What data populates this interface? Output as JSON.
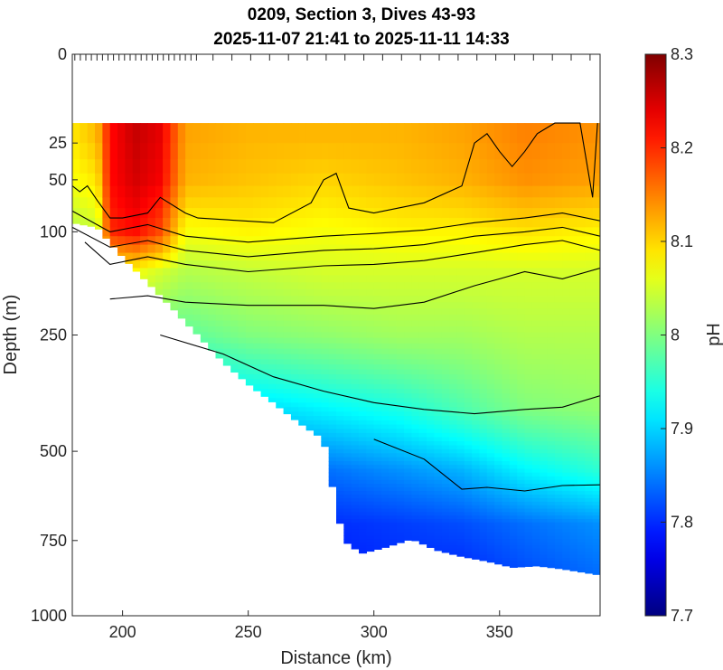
{
  "chart_data": {
    "type": "heatmap",
    "title": [
      "0209, Section 3, Dives 43-93",
      "2025-11-07 21:41 to 2025-11-11 14:33"
    ],
    "xlabel": "Distance (km)",
    "ylabel": "Depth (m)",
    "xlim": [
      180,
      390
    ],
    "ylim": [
      0,
      1000
    ],
    "y_scale": "nonlinear (square-root-like)",
    "x_ticks": [
      200,
      250,
      300,
      350
    ],
    "y_ticks": [
      0,
      25,
      50,
      100,
      250,
      500,
      750,
      1000
    ],
    "colorbar": {
      "label": "pH",
      "range": [
        7.7,
        8.3
      ],
      "ticks": [
        7.7,
        7.8,
        7.9,
        8,
        8.1,
        8.2,
        8.3
      ],
      "tick_labels": [
        "7.7",
        "7.8",
        "7.9",
        "8",
        "8.1",
        "8.2",
        "8.3"
      ],
      "colormap": "jet"
    },
    "grid": false,
    "dive_markers_axis": "top",
    "data_top_depth": 15,
    "bottom_depth_profile": {
      "distance": [
        180,
        190,
        200,
        210,
        220,
        230,
        240,
        250,
        260,
        270,
        280,
        288,
        295,
        305,
        315,
        325,
        335,
        345,
        355,
        365,
        375,
        390
      ],
      "depth": [
        90,
        95,
        130,
        165,
        205,
        250,
        300,
        345,
        385,
        430,
        470,
        750,
        790,
        770,
        745,
        780,
        800,
        815,
        835,
        830,
        840,
        860
      ]
    },
    "value_profiles": {
      "depths": [
        15,
        50,
        100,
        150,
        250,
        400,
        550,
        700,
        850
      ],
      "columns": [
        {
          "distance": 180,
          "ph": [
            8.09,
            8.07,
            8.03,
            8.0,
            7.96,
            7.88,
            7.83,
            7.8,
            7.79
          ]
        },
        {
          "distance": 190,
          "ph": [
            8.12,
            8.09,
            8.04,
            8.01,
            7.96,
            7.88,
            7.83,
            7.8,
            7.79
          ]
        },
        {
          "distance": 195,
          "ph": [
            8.22,
            8.22,
            8.2,
            8.05,
            7.97,
            7.88,
            7.83,
            7.8,
            7.79
          ]
        },
        {
          "distance": 205,
          "ph": [
            8.26,
            8.25,
            8.22,
            8.07,
            7.98,
            7.88,
            7.83,
            7.8,
            7.79
          ]
        },
        {
          "distance": 215,
          "ph": [
            8.24,
            8.23,
            8.18,
            8.05,
            7.98,
            7.88,
            7.83,
            7.8,
            7.79
          ]
        },
        {
          "distance": 225,
          "ph": [
            8.13,
            8.12,
            8.07,
            8.03,
            7.98,
            7.88,
            7.83,
            7.8,
            7.79
          ]
        },
        {
          "distance": 250,
          "ph": [
            8.12,
            8.11,
            8.08,
            8.04,
            8.0,
            7.9,
            7.83,
            7.8,
            7.79
          ]
        },
        {
          "distance": 280,
          "ph": [
            8.12,
            8.1,
            8.07,
            8.05,
            8.01,
            7.92,
            7.84,
            7.8,
            7.79
          ]
        },
        {
          "distance": 310,
          "ph": [
            8.12,
            8.11,
            8.08,
            8.05,
            8.02,
            7.94,
            7.86,
            7.81,
            7.8
          ]
        },
        {
          "distance": 335,
          "ph": [
            8.13,
            8.12,
            8.08,
            8.05,
            8.02,
            7.97,
            7.88,
            7.82,
            7.8
          ]
        },
        {
          "distance": 360,
          "ph": [
            8.15,
            8.14,
            8.09,
            8.05,
            8.03,
            8.0,
            7.92,
            7.84,
            7.82
          ]
        },
        {
          "distance": 390,
          "ph": [
            8.14,
            8.13,
            8.08,
            8.05,
            8.03,
            8.01,
            7.95,
            7.86,
            7.84
          ]
        }
      ]
    },
    "contour_levels": [
      8.1,
      8.075,
      8.05,
      8.04,
      8.025,
      7.95,
      7.875
    ],
    "contours": [
      {
        "distance": [
          180,
          183,
          186,
          190,
          195,
          200,
          210,
          215,
          225,
          230,
          260,
          275,
          280,
          285,
          290,
          300,
          320,
          335,
          340,
          345,
          350,
          355,
          360,
          365,
          372,
          377,
          382,
          387,
          389
        ],
        "depth": [
          55,
          60,
          55,
          68,
          85,
          85,
          80,
          65,
          80,
          85,
          90,
          70,
          50,
          45,
          75,
          80,
          70,
          55,
          25,
          20,
          30,
          40,
          30,
          20,
          15,
          15,
          15,
          65,
          15
        ]
      },
      {
        "distance": [
          180,
          195,
          210,
          225,
          250,
          280,
          300,
          320,
          340,
          360,
          375,
          390
        ],
        "depth": [
          78,
          100,
          92,
          105,
          112,
          105,
          102,
          98,
          90,
          85,
          80,
          88
        ]
      },
      {
        "distance": [
          180,
          195,
          210,
          225,
          250,
          280,
          300,
          320,
          340,
          360,
          375,
          390
        ],
        "depth": [
          95,
          118,
          110,
          122,
          130,
          122,
          120,
          115,
          105,
          100,
          95,
          105
        ]
      },
      {
        "distance": [
          185,
          195,
          210,
          225,
          250,
          280,
          300,
          320,
          340,
          360,
          375,
          390
        ],
        "depth": [
          112,
          140,
          130,
          140,
          150,
          142,
          140,
          135,
          125,
          115,
          110,
          122
        ]
      },
      {
        "distance": [
          195,
          210,
          225,
          250,
          280,
          300,
          320,
          340,
          350,
          360,
          375,
          390
        ],
        "depth": [
          190,
          185,
          195,
          200,
          200,
          205,
          195,
          170,
          160,
          150,
          160,
          145
        ]
      },
      {
        "distance": [
          215,
          240,
          260,
          280,
          300,
          320,
          340,
          360,
          375,
          390
        ],
        "depth": [
          250,
          285,
          330,
          360,
          385,
          400,
          410,
          400,
          395,
          370
        ]
      },
      {
        "distance": [
          300,
          320,
          335,
          345,
          360,
          375,
          390
        ],
        "depth": [
          470,
          520,
          600,
          595,
          605,
          590,
          588
        ]
      }
    ]
  }
}
